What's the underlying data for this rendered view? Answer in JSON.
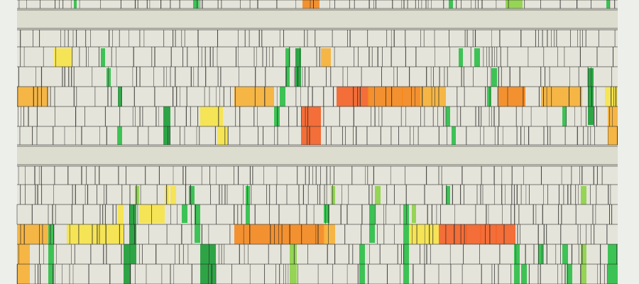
{
  "artwork": {
    "kind": "geometric-grid-artwork",
    "palette": {
      "background": "#ecefea",
      "paper": "#e5e4da",
      "line": "#222222",
      "green": "#2fbf4a",
      "green_dark": "#1f9e3a",
      "lime": "#8ed24a",
      "yellow": "#f6e44a",
      "amber": "#f6b23a",
      "orange": "#f48a22",
      "red_orange": "#f4642a"
    }
  }
}
